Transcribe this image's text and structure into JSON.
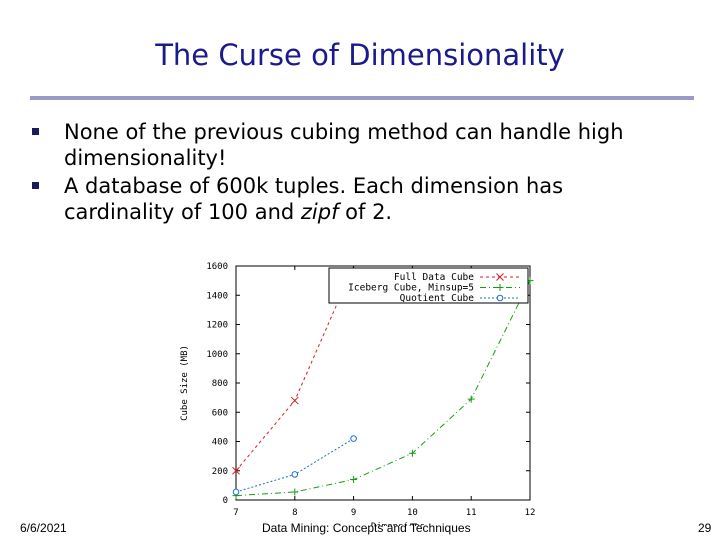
{
  "slide": {
    "title": "The Curse of Dimensionality",
    "bullets": [
      {
        "pre": "None of the previous cubing method can handle high dimensionality!",
        "em": "",
        "post": ""
      },
      {
        "pre": "A database of 600k tuples.  Each dimension has cardinality of 100 and ",
        "em": "zipf",
        "post": " of 2."
      }
    ],
    "footer": {
      "date": "6/6/2021",
      "center": "Data Mining: Concepts and Techniques",
      "page": "29"
    }
  },
  "colors": {
    "title": "#1a1a8c",
    "rule": "#9a9ac8",
    "full": "#d62020",
    "iceberg": "#10a010",
    "quotient": "#1a6fd6"
  },
  "chart_data": {
    "type": "line",
    "xlabel": "Dimensions",
    "ylabel": "Cube Size (MB)",
    "xlim": [
      7,
      12
    ],
    "ylim": [
      0,
      1600
    ],
    "xticks": [
      7,
      8,
      9,
      10,
      11,
      12
    ],
    "yticks": [
      0,
      200,
      400,
      600,
      800,
      1000,
      1200,
      1400,
      1600
    ],
    "legend_position": "top-right",
    "series": [
      {
        "name": "Full Data Cube",
        "marker": "x",
        "dash": "3,3",
        "x": [
          7,
          8,
          9
        ],
        "y": [
          200,
          680,
          1600
        ]
      },
      {
        "name": "Iceberg Cube, Minsup=5",
        "marker": "+",
        "dash": "6,3,1,3",
        "x": [
          7,
          8,
          9,
          10,
          11,
          12
        ],
        "y": [
          30,
          55,
          140,
          320,
          690,
          1500
        ]
      },
      {
        "name": "Quotient Cube",
        "marker": "o",
        "dash": "2,2",
        "x": [
          7,
          8,
          9
        ],
        "y": [
          55,
          175,
          420
        ]
      }
    ]
  }
}
